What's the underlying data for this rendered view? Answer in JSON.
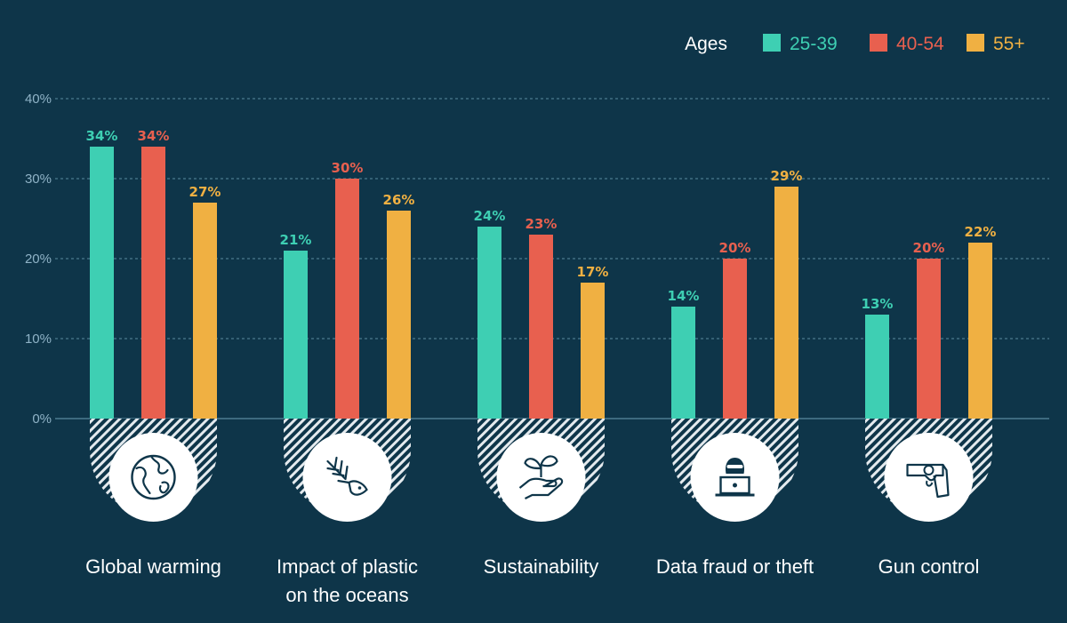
{
  "colors": {
    "background": "#0e3549",
    "axis_text": "#8fb3c7",
    "series": [
      "#3ecfb3",
      "#e8604f",
      "#f0b042"
    ],
    "icon_line": "#0e3549",
    "text": "#ffffff"
  },
  "chart_data": {
    "type": "bar",
    "title": "",
    "xlabel": "",
    "ylabel": "",
    "ylim": [
      0,
      40
    ],
    "yticks": [
      0,
      10,
      20,
      30,
      40
    ],
    "ytick_labels": [
      "0%",
      "10%",
      "20%",
      "30%",
      "40%"
    ],
    "grid": true,
    "legend": {
      "placement": "top-right",
      "title": "Ages"
    },
    "categories": [
      {
        "lines": [
          "Global warming"
        ],
        "icon": "globe-icon"
      },
      {
        "lines": [
          "Impact of plastic",
          "on the oceans"
        ],
        "icon": "fish-skeleton-icon"
      },
      {
        "lines": [
          "Sustainability"
        ],
        "icon": "plant-in-hand-icon"
      },
      {
        "lines": [
          "Data fraud or theft"
        ],
        "icon": "hacker-laptop-icon"
      },
      {
        "lines": [
          "Gun control"
        ],
        "icon": "revolver-icon"
      }
    ],
    "series": [
      {
        "name": "25-39",
        "values": [
          34,
          21,
          24,
          14,
          13
        ],
        "labels": [
          "34%",
          "21%",
          "24%",
          "14%",
          "13%"
        ]
      },
      {
        "name": "40-54",
        "values": [
          34,
          30,
          23,
          20,
          20
        ],
        "labels": [
          "34%",
          "30%",
          "23%",
          "20%",
          "20%"
        ]
      },
      {
        "name": "55+",
        "values": [
          27,
          26,
          17,
          29,
          22
        ],
        "labels": [
          "27%",
          "26%",
          "17%",
          "29%",
          "22%"
        ]
      }
    ]
  }
}
